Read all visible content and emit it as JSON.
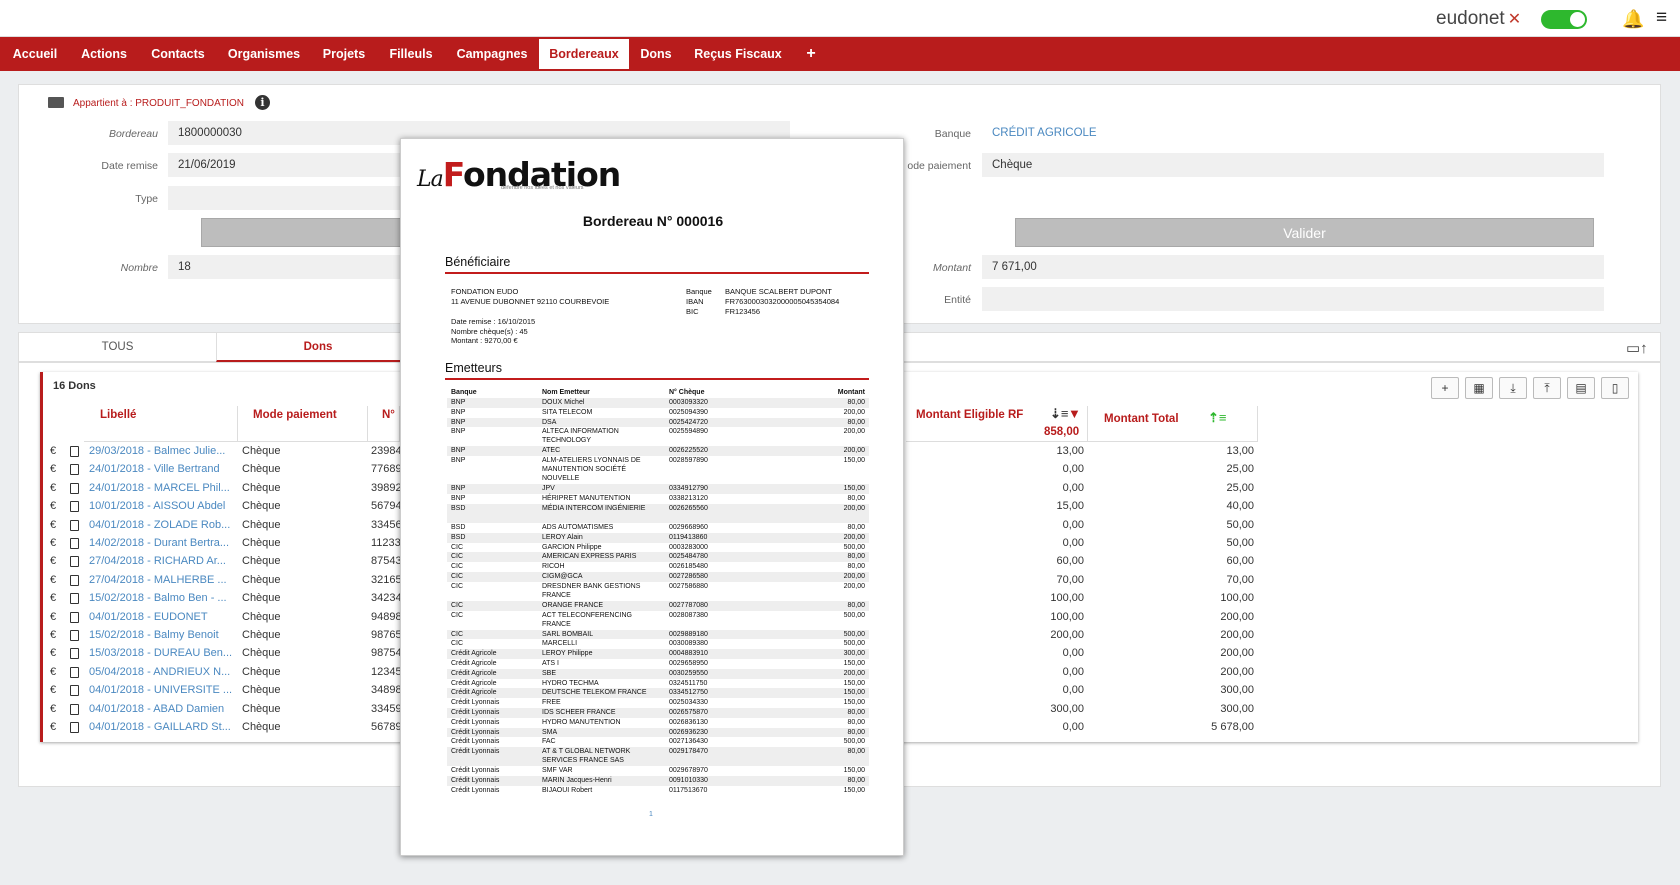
{
  "top": {
    "brand": "eudonet",
    "brand_mark": "✕"
  },
  "nav": [
    "Accueil",
    "Actions",
    "Contacts",
    "Organismes",
    "Projets",
    "Filleuls",
    "Campagnes",
    "Bordereaux",
    "Dons",
    "Reçus Fiscaux",
    "+"
  ],
  "form": {
    "belong": "Appartient à : PRODUIT_FONDATION",
    "bordereau_label": "Bordereau",
    "bordereau": "1800000030",
    "date_label": "Date remise",
    "date": "21/06/2019",
    "type_label": "Type",
    "nombre_label": "Nombre",
    "nombre": "18",
    "banque_label": "Banque",
    "banque": "CRÉDIT AGRICOLE",
    "mode_label": "ode paiement",
    "mode": "Chèque",
    "valider": "Valider",
    "montant_label": "Montant",
    "montant": "7 671,00",
    "entite_label": "Entité"
  },
  "tabs": {
    "tous": "TOUS",
    "dons": "Dons"
  },
  "list": {
    "count": "16 Dons",
    "col_libelle": "Libellé",
    "col_mode": "Mode paiement",
    "col_num": "N°",
    "col_eligible": "Montant Eligible RF",
    "eligible_total": "858,00",
    "col_total": "Montant Total",
    "rows": [
      {
        "lib": "29/03/2018 - Balmec Julie...",
        "mode": "Chèque",
        "num": "23984",
        "m1": "13,00",
        "m2": "13,00"
      },
      {
        "lib": "24/01/2018 - Ville Bertrand",
        "mode": "Chèque",
        "num": "77689",
        "m1": "0,00",
        "m2": "25,00"
      },
      {
        "lib": "24/01/2018 - MARCEL Phil...",
        "mode": "Chèque",
        "num": "39892",
        "m1": "0,00",
        "m2": "25,00"
      },
      {
        "lib": "10/01/2018 - AISSOU Abdel",
        "mode": "Chèque",
        "num": "56794",
        "m1": "15,00",
        "m2": "40,00"
      },
      {
        "lib": "04/01/2018 - ZOLADE Rob...",
        "mode": "Chèque",
        "num": "33456",
        "m1": "0,00",
        "m2": "50,00"
      },
      {
        "lib": "14/02/2018 - Durant Bertra...",
        "mode": "Chèque",
        "num": "11233",
        "m1": "0,00",
        "m2": "50,00"
      },
      {
        "lib": "27/04/2018 - RICHARD Ar...",
        "mode": "Chèque",
        "num": "87543",
        "m1": "60,00",
        "m2": "60,00"
      },
      {
        "lib": "27/04/2018 - MALHERBE ...",
        "mode": "Chèque",
        "num": "32165",
        "m1": "70,00",
        "m2": "70,00"
      },
      {
        "lib": "15/02/2018 - Balmo Ben - ...",
        "mode": "Chèque",
        "num": "34234",
        "m1": "100,00",
        "m2": "100,00"
      },
      {
        "lib": "04/01/2018 - EUDONET",
        "mode": "Chèque",
        "num": "94898",
        "m1": "100,00",
        "m2": "200,00"
      },
      {
        "lib": "15/02/2018 - Balmy Benoit",
        "mode": "Chèque",
        "num": "98765",
        "m1": "200,00",
        "m2": "200,00"
      },
      {
        "lib": "15/03/2018 - DUREAU Ben...",
        "mode": "Chèque",
        "num": "98754",
        "m1": "0,00",
        "m2": "200,00"
      },
      {
        "lib": "05/04/2018 - ANDRIEUX N...",
        "mode": "Chèque",
        "num": "12345",
        "m1": "0,00",
        "m2": "200,00"
      },
      {
        "lib": "04/01/2018 - UNIVERSITE ...",
        "mode": "Chèque",
        "num": "34898",
        "m1": "0,00",
        "m2": "300,00"
      },
      {
        "lib": "04/01/2018 - ABAD Damien",
        "mode": "Chèque",
        "num": "33459",
        "m1": "300,00",
        "m2": "300,00"
      },
      {
        "lib": "04/01/2018 - GAILLARD St...",
        "mode": "Chèque",
        "num": "56789",
        "m1": "0,00",
        "m2": "5 678,00"
      }
    ]
  },
  "doc": {
    "logo_la": "La",
    "logo_f": "F",
    "logo_rest": "ondation",
    "slogan": "défendre nos idées et nos valeurs",
    "title": "Bordereau N° 000016",
    "benef": "Bénéficiaire",
    "org": "FONDATION EUDO",
    "addr": "11 AVENUE DUBONNET 92110 COURBEVOIE",
    "date": "Date remise : 16/10/2015",
    "nb": "Nombre chèque(s) : 45",
    "mt": "Montant : 9270,00 €",
    "k_banque": "Banque",
    "v_banque": "BANQUE SCALBERT DUPONT",
    "k_iban": "IBAN",
    "v_iban": "FR7630003032000005045354084",
    "k_bic": "BIC",
    "v_bic": "FR123456",
    "emet": "Emetteurs",
    "h_banque": "Banque",
    "h_nom": "Nom Emetteur",
    "h_cheque": "N° Chèque",
    "h_montant": "Montant",
    "rows": [
      [
        "BNP",
        "DOUX Michel",
        "0003093320",
        "80,00"
      ],
      [
        "BNP",
        "SITA TELECOM",
        "0025094390",
        "200,00"
      ],
      [
        "BNP",
        "DSA",
        "0025424720",
        "80,00"
      ],
      [
        "BNP",
        "ALTECA INFORMATION TECHNOLOGY",
        "0025594890",
        "200,00"
      ],
      [
        "BNP",
        "ATEC",
        "0026225520",
        "200,00"
      ],
      [
        "BNP",
        "ALM-ATELIERS LYONNAIS DE MANUTENTION SOCIÉTÉ NOUVELLE",
        "0028597890",
        "150,00"
      ],
      [
        "BNP",
        "JPV",
        "0334912790",
        "150,00"
      ],
      [
        "BNP",
        "HÉRIPRET MANUTENTION",
        "0338213120",
        "80,00"
      ],
      [
        "BSD",
        "MÉDIA INTERCOM INGÉNIERIE",
        "0026265560",
        "200,00"
      ],
      [
        "BSD",
        "ADS AUTOMATISMES",
        "0029668960",
        "80,00"
      ],
      [
        "BSD",
        "LEROY Alain",
        "0119413860",
        "200,00"
      ],
      [
        "CIC",
        "GARCION Philippe",
        "0003283000",
        "500,00"
      ],
      [
        "CIC",
        "AMERICAN EXPRESS PARIS",
        "0025484780",
        "80,00"
      ],
      [
        "CIC",
        "RICOH",
        "0026185480",
        "80,00"
      ],
      [
        "CIC",
        "CIGM@GCA",
        "0027286580",
        "200,00"
      ],
      [
        "CIC",
        "DRESDNER BANK GESTIONS FRANCE",
        "0027586880",
        "200,00"
      ],
      [
        "CIC",
        "ORANGE FRANCE",
        "0027787080",
        "80,00"
      ],
      [
        "CIC",
        "ACT TELECONFERENCING FRANCE",
        "0028087380",
        "500,00"
      ],
      [
        "CIC",
        "SARL BOMBAIL",
        "0029889180",
        "500,00"
      ],
      [
        "CIC",
        "MARCELLI",
        "0030089380",
        "500,00"
      ],
      [
        "Crédit Agricole",
        "LEROY Philippe",
        "0004883910",
        "300,00"
      ],
      [
        "Crédit Agricole",
        "ATS I",
        "0029658950",
        "150,00"
      ],
      [
        "Crédit Agricole",
        "SBE",
        "0030259550",
        "200,00"
      ],
      [
        "Crédit Agricole",
        "HYDRO TECHMA",
        "0324511750",
        "150,00"
      ],
      [
        "Crédit Agricole",
        "DEUTSCHE TELEKOM FRANCE",
        "0334512750",
        "150,00"
      ],
      [
        "Crédit Lyonnais",
        "FREE",
        "0025034330",
        "150,00"
      ],
      [
        "Crédit Lyonnais",
        "IDS SCHEER FRANCE",
        "0026575870",
        "80,00"
      ],
      [
        "Crédit Lyonnais",
        "HYDRO MANUTENTION",
        "0026836130",
        "80,00"
      ],
      [
        "Crédit Lyonnais",
        "SMA",
        "0026936230",
        "80,00"
      ],
      [
        "Crédit Lyonnais",
        "FAC",
        "0027136430",
        "500,00"
      ],
      [
        "Crédit Lyonnais",
        "AT & T GLOBAL NETWORK SERVICES FRANCE SAS",
        "0029178470",
        "80,00"
      ],
      [
        "Crédit Lyonnais",
        "SMF VAR",
        "0029678970",
        "150,00"
      ],
      [
        "Crédit Lyonnais",
        "MARIN Jacques-Henri",
        "0091010330",
        "80,00"
      ],
      [
        "Crédit Lyonnais",
        "BIJAOUI Robert",
        "0117513670",
        "150,00"
      ]
    ],
    "page": "1"
  }
}
